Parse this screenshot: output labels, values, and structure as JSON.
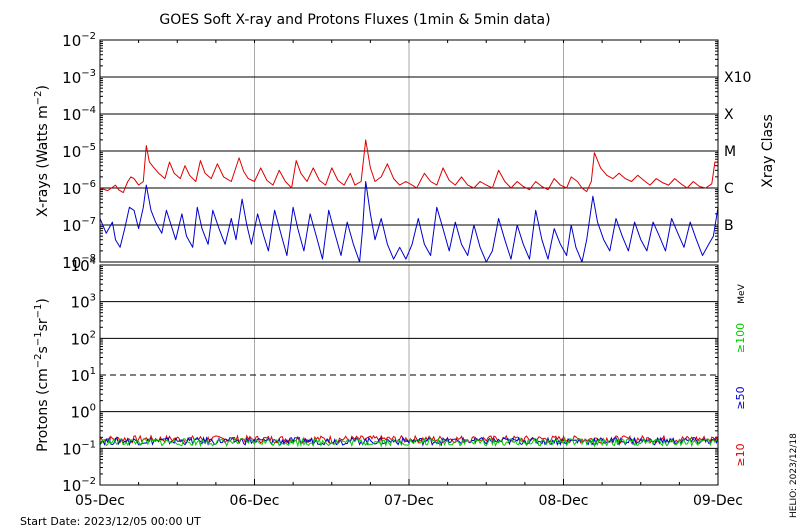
{
  "chart_data": [
    {
      "type": "line",
      "title": "GOES Soft X-ray and Protons Fluxes   (1min & 5min data)",
      "ylabel_html": "X-rays (Watts m⁻²)",
      "ylabel": "X-rays (Watts m",
      "ylabel_exp": "−2",
      "ylabel_end": ")",
      "yscale": "log",
      "ylim": [
        1e-08,
        0.01
      ],
      "ytick_exponents": [
        -2,
        -3,
        -4,
        -5,
        -6,
        -7,
        -8
      ],
      "right_axis_title": "Xray Class",
      "class_labels": [
        {
          "label": "X10",
          "value": 0.001
        },
        {
          "label": "X",
          "value": 0.0001
        },
        {
          "label": "M",
          "value": 1e-05
        },
        {
          "label": "C",
          "value": 1e-06
        },
        {
          "label": "B",
          "value": 1e-07
        }
      ],
      "series": [
        {
          "color": "#dd0000",
          "points": [
            [
              0.0,
              1e-06
            ],
            [
              0.05,
              8.5e-07
            ],
            [
              0.1,
              1.2e-06
            ],
            [
              0.12,
              9e-07
            ],
            [
              0.15,
              7.5e-07
            ],
            [
              0.18,
              1.5e-06
            ],
            [
              0.2,
              2e-06
            ],
            [
              0.22,
              1.8e-06
            ],
            [
              0.25,
              1.2e-06
            ],
            [
              0.28,
              1.5e-06
            ],
            [
              0.3,
              1.4e-05
            ],
            [
              0.32,
              5e-06
            ],
            [
              0.35,
              3.5e-06
            ],
            [
              0.38,
              2.5e-06
            ],
            [
              0.42,
              1.8e-06
            ],
            [
              0.45,
              5e-06
            ],
            [
              0.48,
              2.5e-06
            ],
            [
              0.52,
              1.8e-06
            ],
            [
              0.55,
              4e-06
            ],
            [
              0.58,
              2.2e-06
            ],
            [
              0.62,
              1.5e-06
            ],
            [
              0.65,
              5.5e-06
            ],
            [
              0.68,
              2.5e-06
            ],
            [
              0.72,
              1.8e-06
            ],
            [
              0.76,
              4.5e-06
            ],
            [
              0.8,
              2e-06
            ],
            [
              0.85,
              1.5e-06
            ],
            [
              0.9,
              6.5e-06
            ],
            [
              0.93,
              2.8e-06
            ],
            [
              0.96,
              1.8e-06
            ],
            [
              1.0,
              1.5e-06
            ],
            [
              1.04,
              3.5e-06
            ],
            [
              1.08,
              1.6e-06
            ],
            [
              1.12,
              1.2e-06
            ],
            [
              1.16,
              3e-06
            ],
            [
              1.2,
              1.5e-06
            ],
            [
              1.24,
              1e-06
            ],
            [
              1.27,
              5.5e-06
            ],
            [
              1.3,
              2.5e-06
            ],
            [
              1.34,
              1.5e-06
            ],
            [
              1.38,
              3.5e-06
            ],
            [
              1.42,
              1.6e-06
            ],
            [
              1.46,
              1.2e-06
            ],
            [
              1.5,
              3.5e-06
            ],
            [
              1.54,
              1.6e-06
            ],
            [
              1.58,
              1.2e-06
            ],
            [
              1.62,
              2.5e-06
            ],
            [
              1.65,
              1.2e-06
            ],
            [
              1.69,
              1.5e-06
            ],
            [
              1.72,
              2e-05
            ],
            [
              1.75,
              3.5e-06
            ],
            [
              1.78,
              1.5e-06
            ],
            [
              1.82,
              2e-06
            ],
            [
              1.86,
              4.5e-06
            ],
            [
              1.9,
              1.8e-06
            ],
            [
              1.94,
              1.2e-06
            ],
            [
              1.98,
              1.5e-06
            ],
            [
              2.02,
              1.2e-06
            ],
            [
              2.05,
              1e-06
            ],
            [
              2.1,
              2.5e-06
            ],
            [
              2.14,
              1.5e-06
            ],
            [
              2.18,
              1.2e-06
            ],
            [
              2.22,
              3.5e-06
            ],
            [
              2.26,
              1.6e-06
            ],
            [
              2.3,
              1.2e-06
            ],
            [
              2.34,
              2e-06
            ],
            [
              2.38,
              1.2e-06
            ],
            [
              2.42,
              1e-06
            ],
            [
              2.46,
              1.5e-06
            ],
            [
              2.5,
              1.2e-06
            ],
            [
              2.54,
              1e-06
            ],
            [
              2.58,
              3e-06
            ],
            [
              2.62,
              1.5e-06
            ],
            [
              2.66,
              1e-06
            ],
            [
              2.7,
              1.5e-06
            ],
            [
              2.74,
              1.1e-06
            ],
            [
              2.78,
              9e-07
            ],
            [
              2.82,
              1.5e-06
            ],
            [
              2.86,
              1.1e-06
            ],
            [
              2.9,
              9e-07
            ],
            [
              2.94,
              1.8e-06
            ],
            [
              2.98,
              1.2e-06
            ],
            [
              3.02,
              1e-06
            ],
            [
              3.05,
              2e-06
            ],
            [
              3.09,
              1.5e-06
            ],
            [
              3.12,
              1e-06
            ],
            [
              3.15,
              8e-07
            ],
            [
              3.18,
              1.5e-06
            ],
            [
              3.2,
              9e-06
            ],
            [
              3.24,
              3.5e-06
            ],
            [
              3.28,
              2.2e-06
            ],
            [
              3.32,
              1.8e-06
            ],
            [
              3.36,
              2.5e-06
            ],
            [
              3.4,
              1.8e-06
            ],
            [
              3.44,
              1.5e-06
            ],
            [
              3.48,
              2.2e-06
            ],
            [
              3.52,
              1.6e-06
            ],
            [
              3.56,
              1.2e-06
            ],
            [
              3.6,
              1.8e-06
            ],
            [
              3.64,
              1.4e-06
            ],
            [
              3.68,
              1.2e-06
            ],
            [
              3.72,
              1.8e-06
            ],
            [
              3.76,
              1.3e-06
            ],
            [
              3.8,
              1e-06
            ],
            [
              3.84,
              1.5e-06
            ],
            [
              3.88,
              1.1e-06
            ],
            [
              3.92,
              1e-06
            ],
            [
              3.96,
              1.3e-06
            ],
            [
              3.98,
              5e-06
            ],
            [
              4.0,
              5e-06
            ]
          ]
        },
        {
          "color": "#0000cc",
          "points": [
            [
              0.0,
              1.5e-07
            ],
            [
              0.04,
              6e-08
            ],
            [
              0.08,
              1.2e-07
            ],
            [
              0.1,
              4e-08
            ],
            [
              0.13,
              2.5e-08
            ],
            [
              0.16,
              8e-08
            ],
            [
              0.19,
              3e-07
            ],
            [
              0.22,
              2.5e-07
            ],
            [
              0.25,
              8e-08
            ],
            [
              0.28,
              3e-07
            ],
            [
              0.3,
              1.2e-06
            ],
            [
              0.33,
              2.5e-07
            ],
            [
              0.36,
              1.2e-07
            ],
            [
              0.4,
              6e-08
            ],
            [
              0.43,
              2.5e-07
            ],
            [
              0.46,
              1e-07
            ],
            [
              0.49,
              4e-08
            ],
            [
              0.53,
              2e-07
            ],
            [
              0.56,
              5e-08
            ],
            [
              0.6,
              2.5e-08
            ],
            [
              0.63,
              3e-07
            ],
            [
              0.66,
              8e-08
            ],
            [
              0.7,
              3e-08
            ],
            [
              0.73,
              2.5e-07
            ],
            [
              0.77,
              8e-08
            ],
            [
              0.81,
              3e-08
            ],
            [
              0.85,
              1.5e-07
            ],
            [
              0.88,
              4e-08
            ],
            [
              0.92,
              5e-07
            ],
            [
              0.95,
              1e-07
            ],
            [
              0.98,
              3e-08
            ],
            [
              1.02,
              2e-07
            ],
            [
              1.06,
              5e-08
            ],
            [
              1.09,
              2e-08
            ],
            [
              1.13,
              2.5e-07
            ],
            [
              1.17,
              6e-08
            ],
            [
              1.21,
              1.5e-08
            ],
            [
              1.25,
              3e-07
            ],
            [
              1.28,
              8e-08
            ],
            [
              1.32,
              2e-08
            ],
            [
              1.36,
              2e-07
            ],
            [
              1.4,
              5e-08
            ],
            [
              1.44,
              1.2e-08
            ],
            [
              1.48,
              2.5e-07
            ],
            [
              1.52,
              6e-08
            ],
            [
              1.56,
              1.5e-08
            ],
            [
              1.6,
              1.2e-07
            ],
            [
              1.64,
              3e-08
            ],
            [
              1.68,
              1e-08
            ],
            [
              1.7,
              8e-08
            ],
            [
              1.72,
              1.5e-06
            ],
            [
              1.75,
              2e-07
            ],
            [
              1.78,
              4e-08
            ],
            [
              1.82,
              1.5e-07
            ],
            [
              1.86,
              3e-08
            ],
            [
              1.9,
              1.2e-08
            ],
            [
              1.94,
              2.5e-08
            ],
            [
              1.98,
              1.2e-08
            ],
            [
              2.02,
              3e-08
            ],
            [
              2.06,
              1.5e-07
            ],
            [
              2.1,
              3e-08
            ],
            [
              2.14,
              1.5e-08
            ],
            [
              2.18,
              3e-07
            ],
            [
              2.22,
              8e-08
            ],
            [
              2.26,
              2e-08
            ],
            [
              2.3,
              1.2e-07
            ],
            [
              2.34,
              3e-08
            ],
            [
              2.38,
              1.5e-08
            ],
            [
              2.42,
              1e-07
            ],
            [
              2.46,
              2.5e-08
            ],
            [
              2.5,
              1e-08
            ],
            [
              2.54,
              2e-08
            ],
            [
              2.58,
              1.5e-07
            ],
            [
              2.62,
              4e-08
            ],
            [
              2.66,
              1.2e-08
            ],
            [
              2.7,
              1e-07
            ],
            [
              2.74,
              3e-08
            ],
            [
              2.78,
              1.2e-08
            ],
            [
              2.82,
              2.5e-07
            ],
            [
              2.86,
              4e-08
            ],
            [
              2.9,
              1.2e-08
            ],
            [
              2.94,
              8e-08
            ],
            [
              2.98,
              3e-08
            ],
            [
              3.02,
              1.5e-08
            ],
            [
              3.05,
              1e-07
            ],
            [
              3.08,
              2.5e-08
            ],
            [
              3.12,
              1e-08
            ],
            [
              3.15,
              4e-08
            ],
            [
              3.19,
              6e-07
            ],
            [
              3.22,
              1.2e-07
            ],
            [
              3.26,
              4e-08
            ],
            [
              3.3,
              2e-08
            ],
            [
              3.34,
              1.5e-07
            ],
            [
              3.38,
              5e-08
            ],
            [
              3.42,
              2e-08
            ],
            [
              3.46,
              1.2e-07
            ],
            [
              3.5,
              4e-08
            ],
            [
              3.54,
              2e-08
            ],
            [
              3.58,
              1.2e-07
            ],
            [
              3.62,
              5e-08
            ],
            [
              3.66,
              2e-08
            ],
            [
              3.7,
              1.5e-07
            ],
            [
              3.74,
              6e-08
            ],
            [
              3.78,
              2.5e-08
            ],
            [
              3.82,
              1.2e-07
            ],
            [
              3.86,
              4e-08
            ],
            [
              3.9,
              1.5e-08
            ],
            [
              3.94,
              3e-08
            ],
            [
              3.97,
              5e-08
            ],
            [
              4.0,
              3e-07
            ]
          ]
        }
      ]
    },
    {
      "type": "line",
      "ylabel": "Protons (cm",
      "ylabel_html": "Protons (cm⁻²s⁻¹sr⁻¹)",
      "yscale": "log",
      "ylim": [
        0.01,
        10000
      ],
      "ytick_exponents": [
        4,
        3,
        2,
        1,
        0,
        -1,
        -2
      ],
      "dashed_threshold": 10,
      "right_axis_unit": "MeV",
      "energy_labels": [
        {
          "label": "≥100",
          "color": "#00cc00"
        },
        {
          "label": "≥50",
          "color": "#0000cc"
        },
        {
          "label": "≥10",
          "color": "#dd0000"
        }
      ],
      "series": [
        {
          "name": "≥10",
          "color": "#dd0000",
          "level": 0.18
        },
        {
          "name": "≥50",
          "color": "#0000cc",
          "level": 0.16
        },
        {
          "name": "≥100",
          "color": "#00cc00",
          "level": 0.15
        }
      ]
    }
  ],
  "x_axis": {
    "xlim": [
      0,
      4
    ],
    "ticks": [
      {
        "value": 0,
        "label": "05-Dec"
      },
      {
        "value": 1,
        "label": "06-Dec"
      },
      {
        "value": 2,
        "label": "07-Dec"
      },
      {
        "value": 3,
        "label": "08-Dec"
      },
      {
        "value": 4,
        "label": "09-Dec"
      }
    ]
  },
  "footer": {
    "start_date": "Start Date: 2023/12/05 00:00 UT",
    "credit": "HELIO: 2023/12/18"
  }
}
